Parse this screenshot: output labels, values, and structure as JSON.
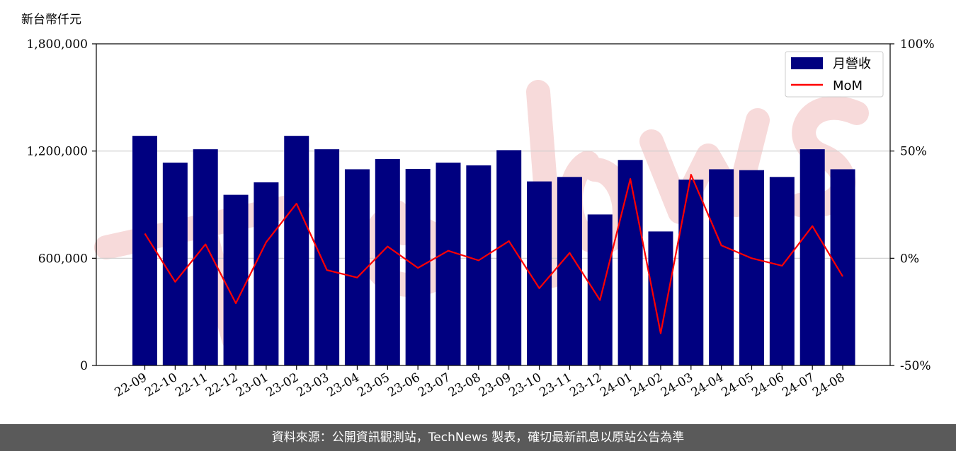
{
  "chart_data": {
    "type": "bar",
    "y_unit_label": "新台幣仟元",
    "categories": [
      "22-09",
      "22-10",
      "22-11",
      "22-12",
      "23-01",
      "23-02",
      "23-03",
      "23-04",
      "23-05",
      "23-06",
      "23-07",
      "23-08",
      "23-09",
      "23-10",
      "23-11",
      "23-12",
      "24-01",
      "24-02",
      "24-03",
      "24-04",
      "24-05",
      "24-06",
      "24-07",
      "24-08"
    ],
    "series": [
      {
        "name": "月營收",
        "type": "bar",
        "axis": "left",
        "color": "#000080",
        "values": [
          1285000,
          1135000,
          1210000,
          955000,
          1025000,
          1285000,
          1210000,
          1098000,
          1155000,
          1100000,
          1135000,
          1120000,
          1205000,
          1030000,
          1055000,
          845000,
          1150000,
          750000,
          1040000,
          1098000,
          1093000,
          1055000,
          1210000,
          1098000
        ]
      },
      {
        "name": "MoM",
        "type": "line",
        "axis": "right",
        "color": "#ff0000",
        "values": [
          11.5,
          -11.0,
          6.5,
          -21.0,
          7.5,
          25.5,
          -5.5,
          -9.0,
          5.5,
          -4.5,
          3.5,
          -1.0,
          8.0,
          -14.0,
          2.5,
          -19.5,
          37.0,
          -35.0,
          39.0,
          6.0,
          0.0,
          -3.5,
          15.0,
          -8.5
        ]
      }
    ],
    "y_left": {
      "min": 0,
      "max": 1800000,
      "ticks": [
        0,
        600000,
        1200000,
        1800000
      ],
      "tick_labels": [
        "0",
        "600,000",
        "1,200,000",
        "1,800,000"
      ]
    },
    "y_right": {
      "min": -50,
      "max": 100,
      "ticks": [
        -50,
        0,
        50,
        100
      ],
      "tick_labels": [
        "-50%",
        "0%",
        "50%",
        "100%"
      ]
    },
    "grid": "horizontal",
    "legend_position": "top-right"
  },
  "footer": {
    "text": "資料來源：公開資訊觀測站，TechNews 製表，確切最新訊息以原站公告為準"
  },
  "colors": {
    "bar": "#000080",
    "line": "#ff0000",
    "footer_bg": "#5a5a5a",
    "watermark": "#f6d4d4"
  }
}
